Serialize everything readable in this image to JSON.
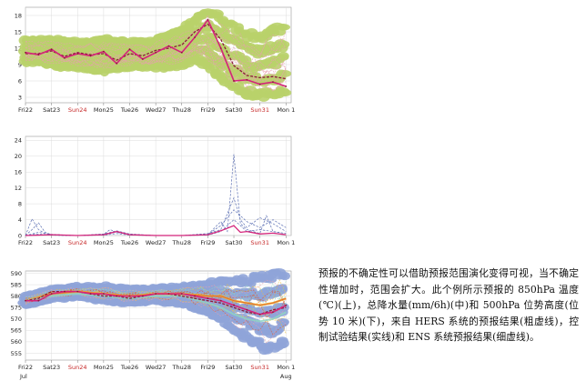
{
  "caption": "预报的不确定性可以借助预报范围演化变得可视，当不确定性增加时，范围会扩大。此个例所示预报的 850hPa 温度(℃)(上)，总降水量(mm/6h)(中)和 500hPa 位势高度(位势 10 米)(下)，来自 HERS 系统的预报结果(粗虚线)，控制试验结果(实线)和 ENS 系统预报结果(细虚线)。",
  "colors": {
    "spread_temperature": "#b9d26a",
    "spread_geopotential": "#8fa4d8",
    "ensemble_thin_temperature": "#e7a0b0",
    "ensemble_thin_precip": "#5b6fb3",
    "control_line": "#d4237a",
    "hers_dashed": "#8b1a3a",
    "weekend_label": "#c62828",
    "plume_warm": "#f0c23c",
    "plume_hot": "#e0582a",
    "plume_cool": "#8fd3c2"
  },
  "chart_data": [
    {
      "type": "line",
      "yticks": [
        3,
        6,
        9,
        12,
        15,
        18
      ],
      "ylim": [
        2,
        19.5
      ],
      "categories": [
        "Fri22",
        "Sat23",
        "Sun24",
        "Mon25",
        "Tue26",
        "Wed27",
        "Thu28",
        "Fri29",
        "Sat30",
        "Sun31",
        "Mon 1"
      ],
      "weekend_labels": [
        "Sun24",
        "Sun31"
      ],
      "x_end": 10.2,
      "series": [
        {
          "role": "control",
          "x": [
            0,
            0.5,
            1,
            1.5,
            2,
            2.5,
            3,
            3.5,
            4,
            4.5,
            5,
            5.5,
            6,
            6.5,
            7,
            7.5,
            8,
            8.5,
            9,
            9.5,
            10
          ],
          "values": [
            11.2,
            10.8,
            11.8,
            10.2,
            11.0,
            10.6,
            11.4,
            9.2,
            11.8,
            10.0,
            11.2,
            12.4,
            11.2,
            14.0,
            17.2,
            12.0,
            6.0,
            6.2,
            5.4,
            5.8,
            5.0
          ]
        },
        {
          "role": "hers",
          "x": [
            0,
            0.5,
            1,
            1.5,
            2,
            2.5,
            3,
            3.5,
            4,
            4.5,
            5,
            5.5,
            6,
            6.5,
            7,
            7.5,
            8,
            8.5,
            9,
            9.5,
            10
          ],
          "values": [
            11.0,
            11.0,
            11.5,
            10.5,
            11.2,
            10.8,
            11.0,
            9.8,
            11.0,
            10.6,
            11.6,
            12.0,
            12.6,
            15.0,
            16.4,
            13.6,
            8.8,
            7.0,
            6.6,
            6.8,
            6.4
          ]
        },
        {
          "role": "spread_upper",
          "x": [
            0,
            1,
            2,
            3,
            4,
            5,
            6,
            6.5,
            7,
            7.5,
            8,
            8.5,
            9,
            9.5,
            10
          ],
          "values": [
            13.5,
            13.5,
            13.0,
            13.5,
            13.0,
            13.5,
            15.0,
            17.0,
            18.5,
            17.5,
            16.0,
            14.5,
            14.0,
            15.0,
            16.0
          ]
        },
        {
          "role": "spread_lower",
          "x": [
            0,
            1,
            2,
            3,
            4,
            5,
            6,
            6.5,
            7,
            7.5,
            8,
            8.5,
            9,
            9.5,
            10
          ],
          "values": [
            9.5,
            9.0,
            8.5,
            8.0,
            8.5,
            8.5,
            9.0,
            10.0,
            9.0,
            6.5,
            5.0,
            4.0,
            3.5,
            3.5,
            4.0
          ]
        }
      ]
    },
    {
      "type": "line",
      "yticks": [
        0,
        4,
        8,
        12,
        16,
        20,
        24
      ],
      "ylim": [
        0,
        25
      ],
      "categories": [
        "Fri22",
        "Sat23",
        "Sun24",
        "Mon25",
        "Tue26",
        "Wed27",
        "Thu28",
        "Fri29",
        "Sat30",
        "Sun31",
        "Mon 1"
      ],
      "weekend_labels": [
        "Sun24",
        "Sun31"
      ],
      "x_end": 10.2,
      "series": [
        {
          "role": "ens_1",
          "x": [
            0,
            0.25,
            0.5,
            0.75,
            1,
            1.5,
            2,
            3,
            3.25,
            3.5,
            4,
            5,
            6,
            7,
            7.5,
            7.75,
            8,
            8.25,
            8.5,
            9,
            9.25,
            9.5,
            10
          ],
          "values": [
            0,
            4.2,
            1.5,
            0.5,
            0.1,
            0,
            0,
            0.3,
            1.5,
            0.8,
            0.2,
            0,
            0,
            0.2,
            3.5,
            1.0,
            20.5,
            3.0,
            1.5,
            0.5,
            5.0,
            1.0,
            0.5
          ]
        },
        {
          "role": "ens_2",
          "x": [
            0,
            0.25,
            0.5,
            0.75,
            1,
            2,
            3,
            3.5,
            4,
            5,
            6,
            7,
            7.5,
            8,
            8.25,
            8.5,
            9,
            9.5,
            10
          ],
          "values": [
            0,
            1.5,
            3.2,
            0.8,
            0.2,
            0,
            0.4,
            1.2,
            0.4,
            0,
            0,
            0.5,
            1.5,
            9.5,
            4.0,
            2.0,
            4.5,
            3.0,
            1.0
          ]
        },
        {
          "role": "ens_3",
          "x": [
            0,
            0.5,
            1,
            2,
            3,
            3.5,
            4,
            5,
            6,
            7,
            7.5,
            8,
            8.5,
            9,
            9.5,
            10
          ],
          "values": [
            0,
            0.8,
            0.3,
            0,
            0.2,
            0.9,
            0.3,
            0,
            0,
            0.3,
            2.5,
            6.5,
            3.5,
            2.0,
            4.0,
            2.0
          ]
        },
        {
          "role": "ens_4",
          "x": [
            0,
            0.5,
            1,
            2,
            3,
            3.5,
            4,
            5,
            6,
            7,
            7.5,
            8,
            8.5,
            9,
            10
          ],
          "values": [
            0,
            0.4,
            0.1,
            0,
            0.1,
            0.5,
            0.1,
            0,
            0,
            0.1,
            1.0,
            4.0,
            1.0,
            1.5,
            0.5
          ]
        },
        {
          "role": "control",
          "x": [
            0,
            1,
            2,
            3,
            3.5,
            4,
            5,
            6,
            7,
            7.5,
            8,
            8.25,
            8.5,
            9,
            9.5,
            10
          ],
          "values": [
            0,
            0.2,
            0,
            0.2,
            1.0,
            0.2,
            0,
            0,
            0.2,
            1.2,
            2.5,
            0.8,
            1.0,
            0.4,
            0.6,
            0.2
          ]
        }
      ]
    },
    {
      "type": "line",
      "yticks": [
        555,
        560,
        565,
        570,
        575,
        580,
        585,
        590
      ],
      "ylim": [
        552,
        591
      ],
      "categories": [
        "Fri22",
        "Sat23",
        "Sun24",
        "Mon25",
        "Tue26",
        "Wed27",
        "Thu28",
        "Fri29",
        "Sat30",
        "Sun31",
        "Mon 1"
      ],
      "weekend_labels": [
        "Sun24",
        "Sun31"
      ],
      "sub_labels": [
        "Jul",
        "Aug"
      ],
      "x_end": 10.2,
      "series": [
        {
          "role": "control",
          "x": [
            0,
            0.5,
            1,
            1.5,
            2,
            2.5,
            3,
            3.5,
            4,
            4.5,
            5,
            5.5,
            6,
            6.5,
            7,
            7.5,
            8,
            8.5,
            9,
            9.5,
            10
          ],
          "values": [
            578,
            578,
            581,
            582,
            582,
            581,
            581,
            580,
            580,
            580,
            581,
            581,
            581,
            580,
            579,
            578,
            576,
            574,
            572,
            573,
            576
          ]
        },
        {
          "role": "hers",
          "x": [
            0,
            0.5,
            1,
            1.5,
            2,
            2.5,
            3,
            3.5,
            4,
            4.5,
            5,
            5.5,
            6,
            6.5,
            7,
            7.5,
            8,
            8.5,
            9,
            9.5,
            10
          ],
          "values": [
            578,
            579,
            582,
            582,
            582,
            581,
            580,
            580,
            579,
            580,
            581,
            581,
            580,
            579,
            578,
            577,
            575,
            573,
            572,
            574,
            575
          ]
        },
        {
          "role": "plume_warm",
          "x": [
            0,
            1,
            2,
            3,
            4,
            5,
            6,
            7,
            7.5,
            8,
            8.5,
            9,
            9.5,
            10
          ],
          "values": [
            578,
            581,
            582,
            581,
            580,
            581,
            581,
            580,
            580,
            578,
            577,
            576,
            577,
            579
          ]
        },
        {
          "role": "plume_cool",
          "x": [
            0,
            1,
            2,
            3,
            4,
            5,
            6,
            7,
            7.5,
            8,
            8.5,
            9,
            9.5,
            10
          ],
          "values": [
            578,
            580,
            581,
            580,
            579,
            580,
            580,
            577,
            575,
            572,
            570,
            569,
            570,
            573
          ]
        },
        {
          "role": "spread_upper",
          "x": [
            0,
            1,
            2,
            3,
            4,
            5,
            6,
            7,
            7.5,
            8,
            8.5,
            9,
            9.5,
            10
          ],
          "values": [
            580,
            583,
            584,
            584,
            583,
            583,
            584,
            585,
            586,
            586,
            587,
            588,
            589,
            590
          ]
        },
        {
          "role": "spread_lower",
          "x": [
            0,
            1,
            2,
            3,
            4,
            5,
            6,
            7,
            7.5,
            8,
            8.5,
            9,
            9.5,
            10
          ],
          "values": [
            576,
            579,
            580,
            578,
            577,
            578,
            577,
            573,
            570,
            566,
            562,
            559,
            557,
            560
          ]
        }
      ]
    }
  ]
}
